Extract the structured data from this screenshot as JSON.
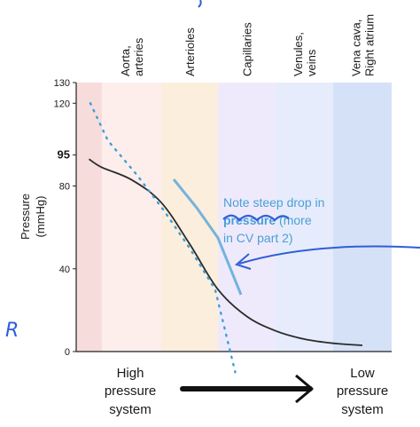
{
  "chart_data": {
    "type": "line",
    "ylabel": "Pressure (mmHg)",
    "ylabel_lines": [
      "Pressure",
      "(mmHg)"
    ],
    "ylim": [
      0,
      130
    ],
    "yticks": [
      0,
      40,
      80,
      95,
      120,
      130
    ],
    "yticks_bold": [
      95
    ],
    "grid": false,
    "bands": [
      {
        "label": "",
        "color": "#f7dcdc"
      },
      {
        "label_lines": [
          "Aorta,",
          "arteries"
        ],
        "color": "#fdeeec"
      },
      {
        "label_lines": [
          "Arterioles"
        ],
        "color": "#fbeedd"
      },
      {
        "label_lines": [
          "Capillaries"
        ],
        "color": "#efeafb"
      },
      {
        "label_lines": [
          "Venules,",
          "veins"
        ],
        "color": "#e6ecfb"
      },
      {
        "label_lines": [
          "Vena cava,",
          "Right atrium"
        ],
        "color": "#d5e1f7"
      }
    ],
    "series": [
      {
        "style": "solid",
        "color": "#2b2b2b",
        "x": [
          0.5,
          1.0,
          1.5,
          2.0,
          2.5,
          3.0,
          3.5,
          4.0,
          4.5,
          5.0,
          5.5
        ],
        "y": [
          93,
          89,
          83,
          72,
          52,
          30,
          17,
          10,
          6,
          4,
          3
        ]
      },
      {
        "style": "dotted",
        "color": "#3aa0d8",
        "x": [
          0.55,
          1.1,
          1.6,
          2.05,
          2.5,
          2.95,
          3.3
        ],
        "y": [
          120,
          102,
          85,
          68,
          50,
          30,
          -10
        ]
      }
    ]
  },
  "annotations": {
    "note_line1": "Note steep drop in",
    "note_scribble": "pressure",
    "note_line2_rest": " (more",
    "note_line3": "in CV part 2)",
    "handwritten_letter": "R",
    "high_label": [
      "High",
      "pressure",
      "system"
    ],
    "low_label": [
      "Low",
      "pressure",
      "system"
    ]
  },
  "colors": {
    "curve": "#2b2b2b",
    "dotted_line": "#3aa0d8",
    "highlight_line": "#4a9fd8",
    "pen": "#2f5fd6",
    "arrow": "#111111"
  }
}
